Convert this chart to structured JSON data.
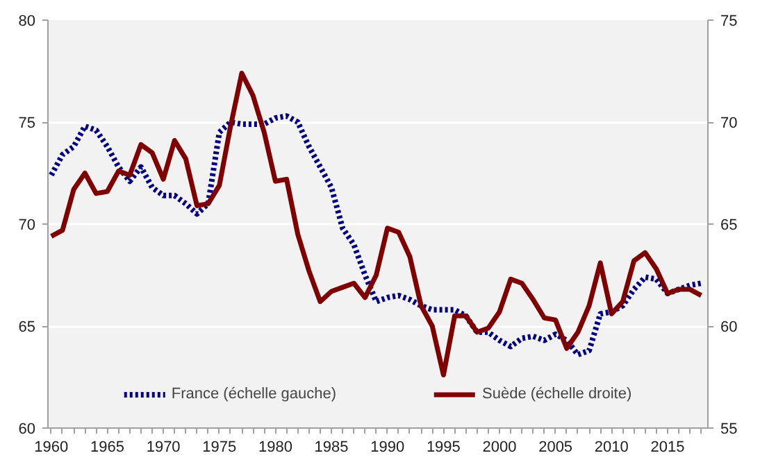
{
  "chart_data": {
    "type": "line",
    "x": [
      1960,
      1961,
      1962,
      1963,
      1964,
      1965,
      1966,
      1967,
      1968,
      1969,
      1970,
      1971,
      1972,
      1973,
      1974,
      1975,
      1976,
      1977,
      1978,
      1979,
      1980,
      1981,
      1982,
      1983,
      1984,
      1985,
      1986,
      1987,
      1988,
      1989,
      1990,
      1991,
      1992,
      1993,
      1994,
      1995,
      1996,
      1997,
      1998,
      1999,
      2000,
      2001,
      2002,
      2003,
      2004,
      2005,
      2006,
      2007,
      2008,
      2009,
      2010,
      2011,
      2012,
      2013,
      2014,
      2015,
      2016,
      2017,
      2018
    ],
    "xlim": [
      1959.7,
      2018.6
    ],
    "xticks": [
      1960,
      1965,
      1970,
      1975,
      1980,
      1985,
      1990,
      1995,
      2000,
      2005,
      2010,
      2015
    ],
    "ylim": [
      60,
      80
    ],
    "yticks": [
      60,
      65,
      70,
      75,
      80
    ],
    "y2lim": [
      55,
      75
    ],
    "y2ticks": [
      55,
      60,
      65,
      70,
      75
    ],
    "grid": "y",
    "legend": "bottom",
    "series": [
      {
        "name": "France (échelle gauche)",
        "color": "#000080",
        "line_style": "dotted",
        "values": [
          72.4,
          73.4,
          73.8,
          74.8,
          74.6,
          73.8,
          72.8,
          72.1,
          72.8,
          71.8,
          71.4,
          71.4,
          71.0,
          70.5,
          71.0,
          74.5,
          75.0,
          74.9,
          74.9,
          74.9,
          75.2,
          75.3,
          75.0,
          73.8,
          72.8,
          71.8,
          69.8,
          69.0,
          67.5,
          66.2,
          66.4,
          66.5,
          66.3,
          66.0,
          65.8,
          65.8,
          65.8,
          65.5,
          64.7,
          64.7,
          64.3,
          64.0,
          64.4,
          64.5,
          64.3,
          64.6,
          64.3,
          63.6,
          63.8,
          65.6,
          65.7,
          66.0,
          66.8,
          67.4,
          67.3,
          66.6,
          66.8,
          67.0,
          67.1
        ]
      },
      {
        "name": "Suède (échelle droite)",
        "color": "#7f0000",
        "line_style": "solid",
        "axis": "y2",
        "values": [
          64.4,
          64.7,
          66.7,
          67.5,
          66.5,
          66.6,
          67.6,
          67.4,
          68.9,
          68.5,
          67.2,
          69.1,
          68.2,
          65.9,
          66.0,
          66.9,
          69.8,
          72.4,
          71.3,
          69.5,
          67.1,
          67.2,
          64.5,
          62.7,
          61.2,
          61.7,
          61.9,
          62.1,
          61.4,
          62.5,
          64.8,
          64.6,
          63.4,
          61.0,
          60.0,
          57.6,
          60.5,
          60.5,
          59.7,
          59.9,
          60.7,
          62.3,
          62.1,
          61.3,
          60.4,
          60.3,
          58.9,
          59.7,
          61.0,
          63.1,
          60.6,
          61.2,
          63.2,
          63.6,
          62.8,
          61.6,
          61.8,
          61.8,
          61.5
        ]
      }
    ]
  }
}
